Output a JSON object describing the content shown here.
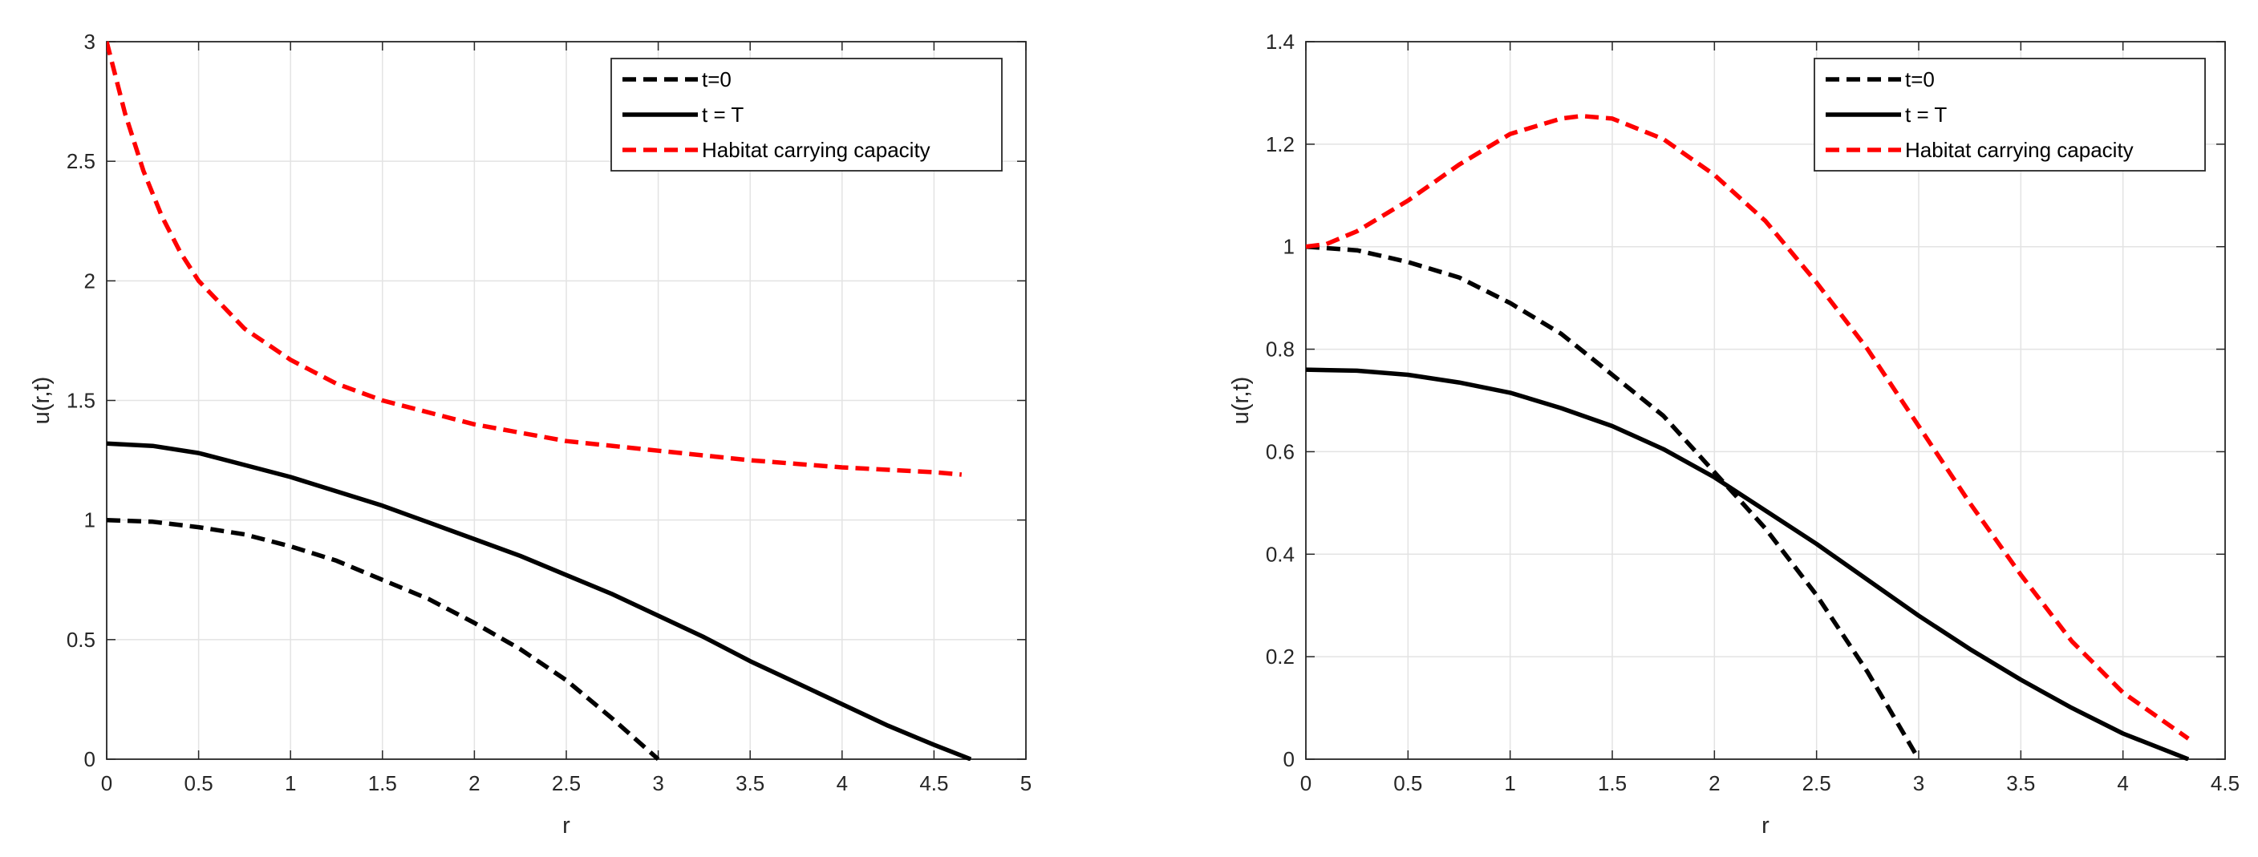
{
  "chart_data": [
    {
      "type": "line",
      "title": "",
      "xlabel": "r",
      "ylabel": "u(r,t)",
      "xlim": [
        0,
        5
      ],
      "ylim": [
        0,
        3
      ],
      "xticks": [
        "0",
        "0.5",
        "1",
        "1.5",
        "2",
        "2.5",
        "3",
        "3.5",
        "4",
        "4.5",
        "5"
      ],
      "yticks": [
        "0",
        "0.5",
        "1",
        "1.5",
        "2",
        "2.5",
        "3"
      ],
      "grid": true,
      "legend_position": "top-right",
      "series": [
        {
          "name": "t=0",
          "color": "#000000",
          "style": "dashed",
          "x": [
            0,
            0.25,
            0.5,
            0.75,
            1,
            1.25,
            1.5,
            1.75,
            2,
            2.25,
            2.5,
            2.75,
            3
          ],
          "y": [
            1,
            0.993,
            0.97,
            0.94,
            0.89,
            0.83,
            0.75,
            0.67,
            0.57,
            0.46,
            0.33,
            0.17,
            0
          ]
        },
        {
          "name": "t = T",
          "color": "#000000",
          "style": "solid",
          "x": [
            0,
            0.25,
            0.5,
            0.75,
            1,
            1.25,
            1.5,
            1.75,
            2,
            2.25,
            2.5,
            2.75,
            3,
            3.25,
            3.5,
            3.75,
            4,
            4.25,
            4.5,
            4.7
          ],
          "y": [
            1.32,
            1.31,
            1.28,
            1.23,
            1.18,
            1.12,
            1.06,
            0.99,
            0.92,
            0.85,
            0.77,
            0.69,
            0.6,
            0.51,
            0.41,
            0.32,
            0.23,
            0.14,
            0.06,
            0
          ]
        },
        {
          "name": "Habitat carrying capacity",
          "color": "#ff0000",
          "style": "dashed",
          "x": [
            0,
            0.1,
            0.2,
            0.3,
            0.4,
            0.5,
            0.75,
            1,
            1.25,
            1.5,
            2,
            2.5,
            3,
            3.5,
            4,
            4.5,
            4.65
          ],
          "y": [
            3,
            2.7,
            2.46,
            2.27,
            2.12,
            2,
            1.8,
            1.67,
            1.57,
            1.5,
            1.4,
            1.33,
            1.29,
            1.25,
            1.22,
            1.2,
            1.19
          ]
        }
      ]
    },
    {
      "type": "line",
      "title": "",
      "xlabel": "r",
      "ylabel": "u(r,t)",
      "xlim": [
        0,
        4.5
      ],
      "ylim": [
        0,
        1.4
      ],
      "xticks": [
        "0",
        "0.5",
        "1",
        "1.5",
        "2",
        "2.5",
        "3",
        "3.5",
        "4",
        "4.5"
      ],
      "yticks": [
        "0",
        "0.2",
        "0.4",
        "0.6",
        "0.8",
        "1",
        "1.2",
        "1.4"
      ],
      "grid": true,
      "legend_position": "top-right",
      "series": [
        {
          "name": "t=0",
          "color": "#000000",
          "style": "dashed",
          "x": [
            0,
            0.25,
            0.5,
            0.75,
            1,
            1.25,
            1.5,
            1.75,
            2,
            2.25,
            2.5,
            2.75,
            3
          ],
          "y": [
            1,
            0.993,
            0.97,
            0.94,
            0.89,
            0.83,
            0.75,
            0.67,
            0.56,
            0.45,
            0.32,
            0.17,
            0
          ]
        },
        {
          "name": "t = T",
          "color": "#000000",
          "style": "solid",
          "x": [
            0,
            0.25,
            0.5,
            0.75,
            1,
            1.25,
            1.5,
            1.75,
            2,
            2.25,
            2.5,
            2.75,
            3,
            3.25,
            3.5,
            3.75,
            4,
            4.32
          ],
          "y": [
            0.76,
            0.758,
            0.75,
            0.735,
            0.715,
            0.685,
            0.65,
            0.605,
            0.55,
            0.485,
            0.42,
            0.35,
            0.28,
            0.215,
            0.155,
            0.1,
            0.05,
            0
          ]
        },
        {
          "name": "Habitat carrying capacity",
          "color": "#ff0000",
          "style": "dashed",
          "x": [
            0,
            0.1,
            0.25,
            0.5,
            0.75,
            1,
            1.25,
            1.35,
            1.5,
            1.75,
            2,
            2.25,
            2.5,
            2.75,
            3,
            3.25,
            3.5,
            3.75,
            4,
            4.32
          ],
          "y": [
            1,
            1.005,
            1.03,
            1.09,
            1.16,
            1.22,
            1.25,
            1.255,
            1.25,
            1.21,
            1.14,
            1.05,
            0.93,
            0.8,
            0.65,
            0.5,
            0.36,
            0.23,
            0.13,
            0.04
          ]
        }
      ]
    }
  ]
}
